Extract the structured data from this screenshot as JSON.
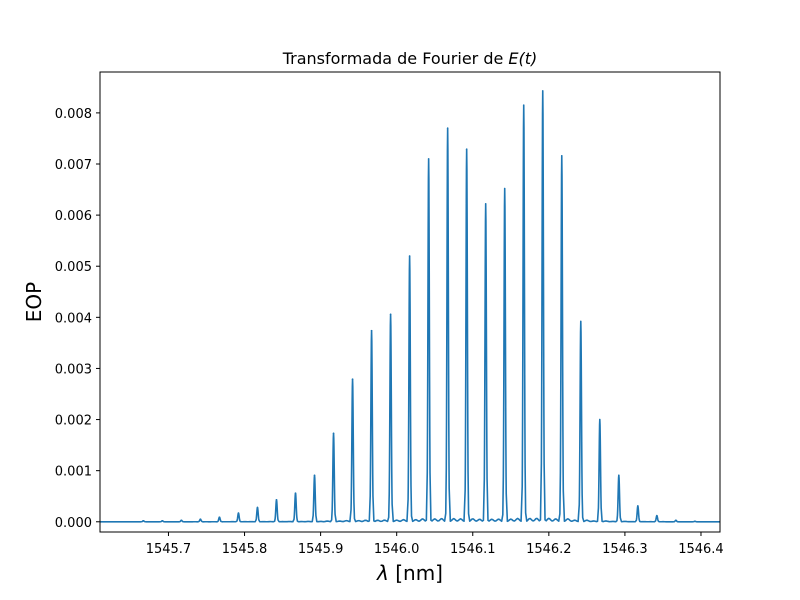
{
  "chart_data": {
    "type": "line",
    "title_prefix": "Transformada de Fourier de ",
    "title_math": "E(t)",
    "title": "Transformada de Fourier de E(t)",
    "xlabel": "λ [nm]",
    "xlabel_symbol": "λ",
    "xlabel_unit": " [nm]",
    "ylabel": "EOP",
    "xlim": [
      1545.61,
      1546.425
    ],
    "ylim": [
      -0.0002,
      0.0088
    ],
    "x_ticks": [
      1545.7,
      1545.8,
      1545.9,
      1546.0,
      1546.1,
      1546.2,
      1546.3,
      1546.4
    ],
    "x_tick_labels": [
      "1545.7",
      "1545.8",
      "1545.9",
      "1546.0",
      "1546.1",
      "1546.2",
      "1546.3",
      "1546.4"
    ],
    "y_ticks": [
      0.0,
      0.001,
      0.002,
      0.003,
      0.004,
      0.005,
      0.006,
      0.007,
      0.008
    ],
    "y_tick_labels": [
      "0.000",
      "0.001",
      "0.002",
      "0.003",
      "0.004",
      "0.005",
      "0.006",
      "0.007",
      "0.008"
    ],
    "grid": false,
    "line_color": "#1f77b4",
    "peaks": [
      {
        "x": 1545.667,
        "y": 2e-05
      },
      {
        "x": 1545.692,
        "y": 2e-05
      },
      {
        "x": 1545.717,
        "y": 3e-05
      },
      {
        "x": 1545.742,
        "y": 5e-05
      },
      {
        "x": 1545.767,
        "y": 9e-05
      },
      {
        "x": 1545.792,
        "y": 0.00017
      },
      {
        "x": 1545.817,
        "y": 0.00028
      },
      {
        "x": 1545.842,
        "y": 0.00043
      },
      {
        "x": 1545.867,
        "y": 0.00056
      },
      {
        "x": 1545.892,
        "y": 0.00091
      },
      {
        "x": 1545.917,
        "y": 0.00173
      },
      {
        "x": 1545.942,
        "y": 0.00279
      },
      {
        "x": 1545.967,
        "y": 0.00374
      },
      {
        "x": 1545.992,
        "y": 0.00406
      },
      {
        "x": 1546.017,
        "y": 0.0052
      },
      {
        "x": 1546.042,
        "y": 0.0071
      },
      {
        "x": 1546.067,
        "y": 0.0077
      },
      {
        "x": 1546.092,
        "y": 0.00729
      },
      {
        "x": 1546.117,
        "y": 0.00622
      },
      {
        "x": 1546.142,
        "y": 0.00652
      },
      {
        "x": 1546.167,
        "y": 0.00815
      },
      {
        "x": 1546.192,
        "y": 0.00843
      },
      {
        "x": 1546.217,
        "y": 0.00716
      },
      {
        "x": 1546.242,
        "y": 0.00392
      },
      {
        "x": 1546.267,
        "y": 0.002
      },
      {
        "x": 1546.292,
        "y": 0.00091
      },
      {
        "x": 1546.317,
        "y": 0.00031
      },
      {
        "x": 1546.342,
        "y": 0.00012
      },
      {
        "x": 1546.367,
        "y": 3e-05
      },
      {
        "x": 1546.392,
        "y": 1e-05
      }
    ]
  }
}
